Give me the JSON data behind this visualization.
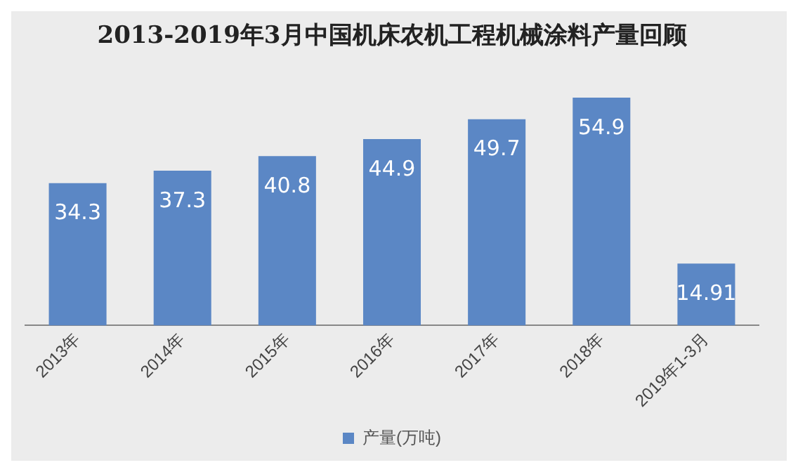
{
  "chart_data": {
    "type": "bar",
    "title": "2013-2019年3月中国机床农机工程机械涂料产量回顾",
    "categories": [
      "2013年",
      "2014年",
      "2015年",
      "2016年",
      "2017年",
      "2018年",
      "2019年1-3月"
    ],
    "series": [
      {
        "name": "产量(万吨)",
        "color": "#5b87c5",
        "values": [
          34.3,
          37.3,
          40.8,
          44.9,
          49.7,
          54.9,
          14.91
        ]
      }
    ],
    "data_labels": true,
    "grid": false,
    "legend": "bottom",
    "tick_labels": "x"
  }
}
